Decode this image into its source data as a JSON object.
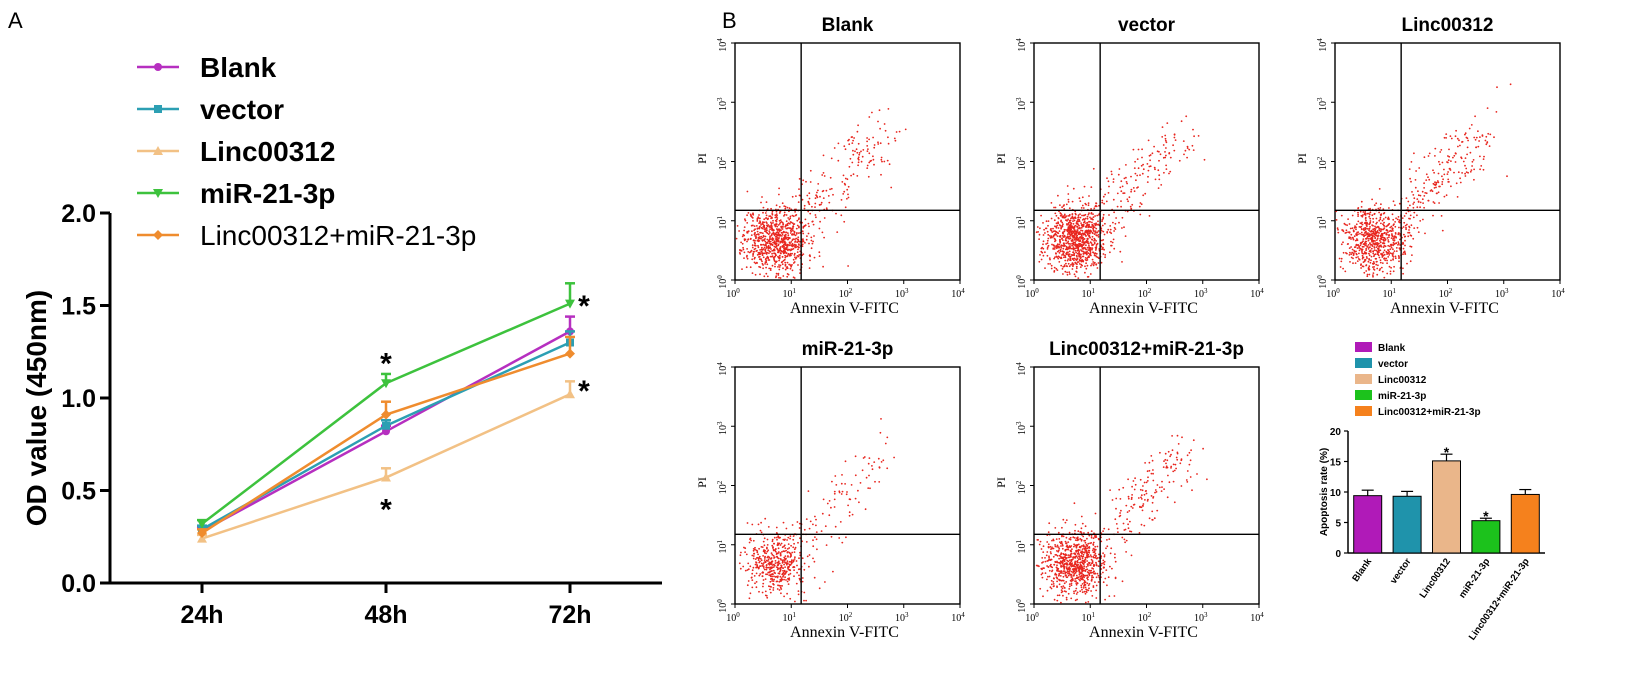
{
  "panels": {
    "a": "A",
    "b": "B"
  },
  "chart_data": [
    {
      "type": "line",
      "panel": "A",
      "categories": [
        "24h",
        "48h",
        "72h"
      ],
      "ylabel": "OD value (450nm)",
      "ylim": [
        0,
        2.0
      ],
      "yticks": [
        "0.0",
        "0.5",
        "1.0",
        "1.5",
        "2.0"
      ],
      "legend_position": "top-left",
      "series": [
        {
          "name": "Blank",
          "color": "#b62fc0",
          "marker": "circle",
          "values": [
            0.28,
            0.82,
            1.36
          ],
          "errors": [
            0.02,
            0.03,
            0.08
          ]
        },
        {
          "name": "vector",
          "color": "#2c9fb3",
          "marker": "square",
          "values": [
            0.29,
            0.85,
            1.3
          ],
          "errors": [
            0.02,
            0.03,
            0.06
          ]
        },
        {
          "name": "Linc00312",
          "color": "#f2c185",
          "marker": "triangle-up",
          "values": [
            0.24,
            0.57,
            1.02
          ],
          "errors": [
            0.02,
            0.05,
            0.07
          ]
        },
        {
          "name": "miR-21-3p",
          "color": "#3dc23d",
          "marker": "triangle-down",
          "values": [
            0.32,
            1.08,
            1.51
          ],
          "errors": [
            0.02,
            0.05,
            0.11
          ]
        },
        {
          "name": "Linc00312+miR-21-3p",
          "color": "#ef8c2e",
          "marker": "diamond",
          "values": [
            0.27,
            0.91,
            1.24
          ],
          "errors": [
            0.02,
            0.07,
            0.09
          ]
        }
      ],
      "annotations": [
        {
          "text": "*",
          "x": "48h",
          "y": 1.22
        },
        {
          "text": "*",
          "x": "48h",
          "y": 0.43
        },
        {
          "text": "*",
          "x": "72h",
          "y": 1.53
        },
        {
          "text": "*",
          "x": "72h",
          "y": 1.07
        }
      ]
    },
    {
      "type": "scatter",
      "panel": "B",
      "xlabel": "Annexin V-FITC",
      "ylabel": "PI",
      "scale": "log",
      "xlim": [
        1,
        10000
      ],
      "ylim": [
        1,
        10000
      ],
      "tick_base": "10",
      "tick_exponents": [
        "0",
        "1",
        "2",
        "3",
        "4"
      ],
      "quadrant_gate": {
        "x": 15,
        "y": 15
      },
      "point_color": "#e8261f",
      "plots": [
        {
          "title": "Blank",
          "seed": 11,
          "early_count": 210,
          "late_count": 175
        },
        {
          "title": "vector",
          "seed": 23,
          "early_count": 230,
          "late_count": 160
        },
        {
          "title": "Linc00312",
          "seed": 37,
          "early_count": 175,
          "late_count": 220
        },
        {
          "title": "miR-21-3p",
          "seed": 49,
          "early_count": 120,
          "late_count": 95
        },
        {
          "title": "Linc00312+miR-21-3p",
          "seed": 61,
          "early_count": 200,
          "late_count": 175
        }
      ]
    },
    {
      "type": "bar",
      "panel": "B",
      "ylabel": "Apoptosis rate (%)",
      "ylim": [
        0,
        20
      ],
      "yticks": [
        "0",
        "5",
        "10",
        "15",
        "20"
      ],
      "legend_position": "top",
      "categories": [
        "Blank",
        "vector",
        "Linc00312",
        "miR-21-3p",
        "Linc00312+miR-21-3p"
      ],
      "values": [
        9.4,
        9.3,
        15.1,
        5.3,
        9.6
      ],
      "errors": [
        0.9,
        0.8,
        1.1,
        0.4,
        0.8
      ],
      "colors": [
        "#b01ab8",
        "#1f93ab",
        "#eab68a",
        "#1cc21c",
        "#f5811d"
      ],
      "annotations": [
        {
          "text": "*",
          "category": "Linc00312"
        },
        {
          "text": "*",
          "category": "miR-21-3p"
        }
      ]
    }
  ]
}
